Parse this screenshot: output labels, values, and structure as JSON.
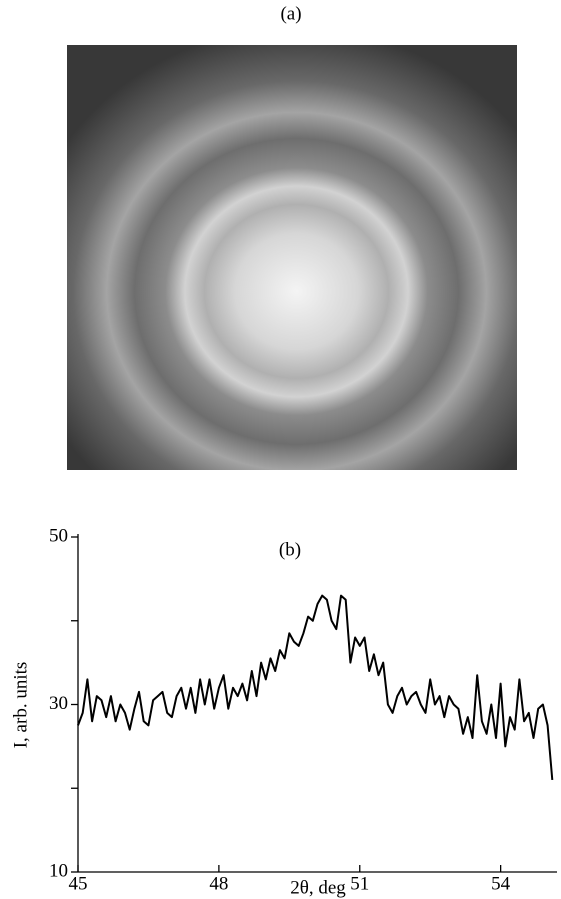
{
  "chart_data": [
    {
      "type": "image",
      "title": "(a)"
    },
    {
      "type": "line",
      "title": "(b)",
      "xlabel": "2θ, deg",
      "ylabel": "I, arb. units",
      "x": [
        45.0,
        45.1,
        45.2,
        45.3,
        45.4,
        45.5,
        45.6,
        45.7,
        45.8,
        45.9,
        46.0,
        46.1,
        46.2,
        46.3,
        46.4,
        46.5,
        46.6,
        46.7,
        46.8,
        46.9,
        47.0,
        47.1,
        47.2,
        47.3,
        47.4,
        47.5,
        47.6,
        47.7,
        47.8,
        47.9,
        48.0,
        48.1,
        48.2,
        48.3,
        48.4,
        48.5,
        48.6,
        48.7,
        48.8,
        48.9,
        49.0,
        49.1,
        49.2,
        49.3,
        49.4,
        49.5,
        49.6,
        49.7,
        49.8,
        49.9,
        50.0,
        50.1,
        50.2,
        50.3,
        50.4,
        50.5,
        50.6,
        50.7,
        50.8,
        50.9,
        51.0,
        51.1,
        51.2,
        51.3,
        51.4,
        51.5,
        51.6,
        51.7,
        51.8,
        51.9,
        52.0,
        52.1,
        52.2,
        52.3,
        52.4,
        52.5,
        52.6,
        52.7,
        52.8,
        52.9,
        53.0,
        53.1,
        53.2,
        53.3,
        53.4,
        53.5,
        53.6,
        53.7,
        53.8,
        53.9,
        54.0,
        54.1,
        54.2,
        54.3,
        54.4,
        54.5,
        54.6,
        54.7,
        54.8,
        54.9,
        55.0,
        55.1
      ],
      "values": [
        27.5,
        29,
        33,
        28,
        31,
        30.5,
        28.5,
        31,
        28,
        30,
        29,
        27,
        29.5,
        31.5,
        28,
        27.5,
        30.5,
        31,
        31.5,
        29,
        28.5,
        31,
        32,
        29.5,
        32,
        29,
        33,
        30,
        33,
        29.5,
        32,
        33.5,
        29.5,
        32,
        31,
        32.5,
        30.5,
        34,
        31,
        35,
        33,
        35.5,
        34,
        36.5,
        35.5,
        38.5,
        37.5,
        37,
        38.5,
        40.5,
        40,
        42,
        43,
        42.5,
        40,
        39,
        43,
        42.5,
        35,
        38,
        37,
        38,
        34,
        36,
        33.5,
        35,
        30,
        29,
        31,
        32,
        30,
        31,
        31.5,
        30,
        29,
        33,
        30,
        31,
        28.5,
        31,
        30,
        29.5,
        26.5,
        28.5,
        26,
        33.5,
        28,
        26.5,
        30,
        26,
        32.5,
        25,
        28.5,
        27,
        33,
        28,
        29,
        26,
        29.5,
        30,
        27.5,
        21
      ],
      "color": "#000000",
      "xlim": [
        45,
        55.2
      ],
      "xticks": [
        45,
        48,
        51,
        54
      ],
      "ylim": [
        10,
        50
      ],
      "yticks": [
        10,
        30,
        50
      ],
      "yminorticks": [
        20,
        40
      ]
    }
  ]
}
